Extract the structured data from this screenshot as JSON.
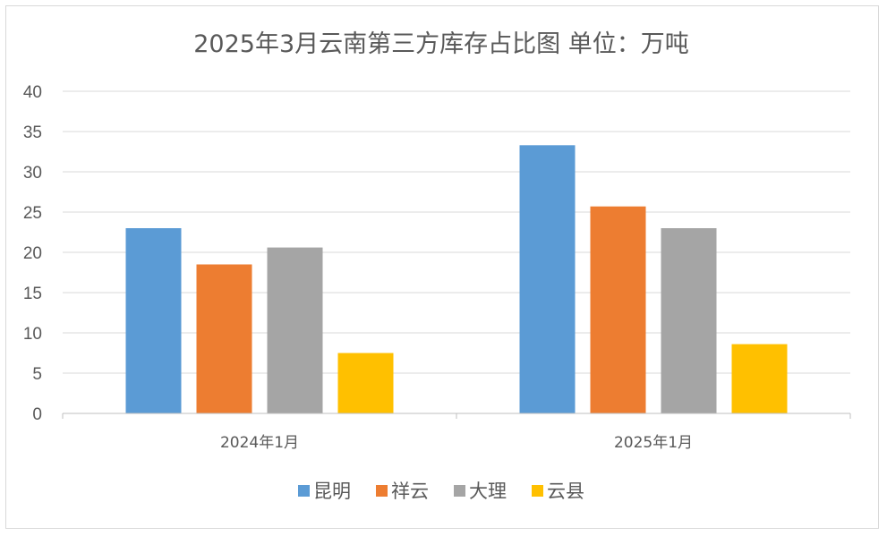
{
  "chart_data": {
    "type": "bar",
    "title": "2025年3月云南第三方库存占比图  单位：万吨",
    "categories": [
      "2024年1月",
      "2025年1月"
    ],
    "series": [
      {
        "name": "昆明",
        "color": "#5B9BD5",
        "values": [
          23.0,
          33.3
        ]
      },
      {
        "name": "祥云",
        "color": "#ED7D31",
        "values": [
          18.5,
          25.7
        ]
      },
      {
        "name": "大理",
        "color": "#A5A5A5",
        "values": [
          20.6,
          23.0
        ]
      },
      {
        "name": "云县",
        "color": "#FFC000",
        "values": [
          7.5,
          8.6
        ]
      }
    ],
    "ylim": [
      0,
      40
    ],
    "yticks": [
      "0",
      "5",
      "10",
      "15",
      "20",
      "25",
      "30",
      "35",
      "40"
    ],
    "grid": true,
    "legend": "bottom"
  }
}
